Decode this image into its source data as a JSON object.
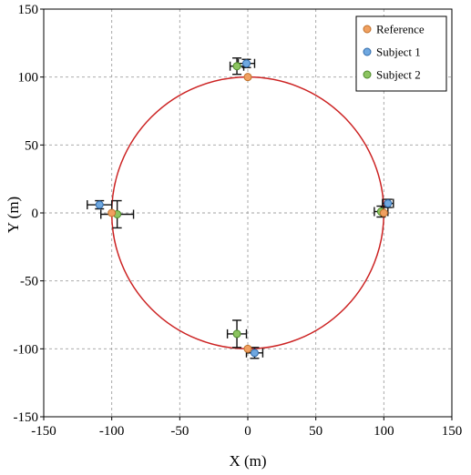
{
  "chart_data": {
    "type": "scatter",
    "xlabel": "X (m)",
    "ylabel": "Y (m)",
    "xlim": [
      -150,
      150
    ],
    "ylim": [
      -150,
      150
    ],
    "xticks": [
      -150,
      -100,
      -50,
      0,
      50,
      100,
      150
    ],
    "yticks": [
      -150,
      -100,
      -50,
      0,
      50,
      100,
      150
    ],
    "grid": true,
    "legend_position": "top-right",
    "reference_circle": {
      "cx": 0,
      "cy": 0,
      "r": 100,
      "color": "#cc2222"
    },
    "series": [
      {
        "name": "Reference",
        "color": "#f0a060",
        "edge": "#c0702a",
        "points": [
          {
            "x": 0,
            "y": 100
          },
          {
            "x": 100,
            "y": 0
          },
          {
            "x": 0,
            "y": -100
          },
          {
            "x": -100,
            "y": 0
          }
        ]
      },
      {
        "name": "Subject 1",
        "color": "#6fa8e0",
        "edge": "#2f6aaa",
        "points": [
          {
            "x": -1,
            "y": 110,
            "xerr": 6,
            "yerr": 3
          },
          {
            "x": 103,
            "y": 7,
            "xerr": 4,
            "yerr": 3
          },
          {
            "x": 5,
            "y": -103,
            "xerr": 6,
            "yerr": 4
          },
          {
            "x": -109,
            "y": 6,
            "xerr": 9,
            "yerr": 3
          }
        ]
      },
      {
        "name": "Subject 2",
        "color": "#8cc460",
        "edge": "#4c8a2a",
        "points": [
          {
            "x": -8,
            "y": 108,
            "xerr": 5,
            "yerr": 6
          },
          {
            "x": 98,
            "y": 1,
            "xerr": 5,
            "yerr": 4
          },
          {
            "x": -8,
            "y": -89,
            "xerr": 7,
            "yerr": 10
          },
          {
            "x": -96,
            "y": -1,
            "xerr": 12,
            "yerr": 10
          }
        ]
      }
    ]
  }
}
